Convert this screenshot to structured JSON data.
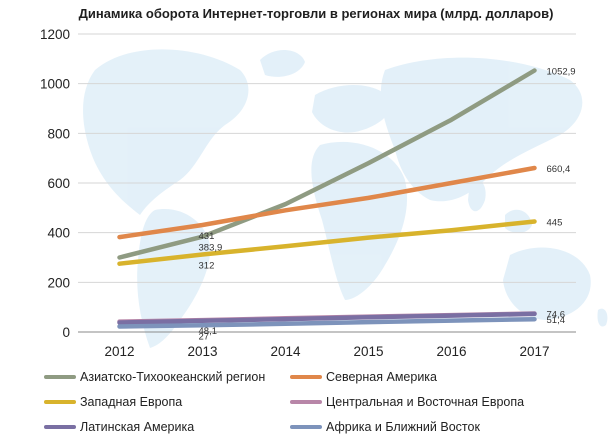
{
  "chart_data": {
    "type": "line",
    "title": "Динамика оборота Интернет-торговли в регионах мира (млрд. долларов)",
    "x": [
      "2012",
      "2013",
      "2014",
      "2015",
      "2016",
      "2017"
    ],
    "ylim": [
      0,
      1200
    ],
    "yticks": [
      "0",
      "200",
      "400",
      "600",
      "800",
      "1000",
      "1200"
    ],
    "grid": true,
    "legend_position": "bottom",
    "series": [
      {
        "name": "Азиатско-Тихоокеанский регион",
        "color": "#8f9b82",
        "values": [
          300,
          383.9,
          515,
          680,
          855,
          1052.9
        ],
        "labels": [
          {
            "index": 1,
            "text": "383,9"
          },
          {
            "index": 5,
            "text": "1052,9"
          }
        ]
      },
      {
        "name": "Северная Америка",
        "color": "#e0874a",
        "values": [
          382,
          431,
          490,
          540,
          600,
          660.4
        ],
        "labels": [
          {
            "index": 1,
            "text": "431"
          },
          {
            "index": 5,
            "text": "660,4"
          }
        ]
      },
      {
        "name": "Западная Европа",
        "color": "#d8b32c",
        "values": [
          275,
          312,
          345,
          380,
          410,
          445
        ],
        "labels": [
          {
            "index": 1,
            "text": "312"
          },
          {
            "index": 5,
            "text": "445"
          }
        ]
      },
      {
        "name": "Центральная и Восточная Европа",
        "color": "#b886a8",
        "values": [
          42,
          48.1,
          55,
          62,
          68,
          74.6
        ],
        "labels": [
          {
            "index": 1,
            "text": "48,1"
          },
          {
            "index": 5,
            "text": "74,6"
          }
        ]
      },
      {
        "name": "Латинская Америка",
        "color": "#7a6fa3",
        "values": [
          38,
          45,
          52,
          59,
          66,
          73
        ],
        "labels": []
      },
      {
        "name": "Африка и Ближний Восток",
        "color": "#7d93bb",
        "values": [
          22,
          27,
          33,
          40,
          46,
          51.4
        ],
        "labels": [
          {
            "index": 1,
            "text": "27"
          },
          {
            "index": 5,
            "text": "51,4"
          }
        ]
      }
    ]
  }
}
